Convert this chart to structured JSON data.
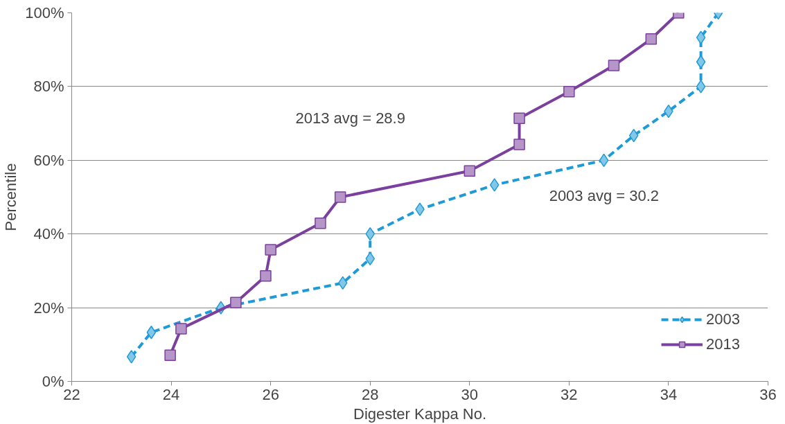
{
  "chart_data": {
    "type": "line",
    "xlabel": "Digester Kappa No.",
    "ylabel": "Percentile",
    "xlim": [
      22,
      36
    ],
    "xticks": [
      22,
      24,
      26,
      28,
      30,
      32,
      34,
      36
    ],
    "ylim": [
      0,
      100
    ],
    "yticks": [
      {
        "value": 0,
        "label": "0%"
      },
      {
        "value": 20,
        "label": "20%"
      },
      {
        "value": 40,
        "label": "40%"
      },
      {
        "value": 60,
        "label": "60%"
      },
      {
        "value": 80,
        "label": "80%"
      },
      {
        "value": 100,
        "label": "100%"
      }
    ],
    "grid": "y",
    "legend": "bottom right",
    "annotations": [
      "2013 avg = 28.9",
      "2003 avg = 30.2"
    ],
    "series": [
      {
        "name": "2003",
        "color": "#1e9ad6",
        "marker": "diamond",
        "line_style": "dashed",
        "x": [
          23.2,
          23.6,
          25.0,
          27.45,
          28.0,
          28.0,
          29.0,
          30.5,
          32.7,
          33.3,
          34.0,
          34.65,
          34.65,
          34.65,
          35.0
        ],
        "values": [
          6.7,
          13.3,
          20,
          26.7,
          33.3,
          40,
          46.7,
          53.3,
          60,
          66.7,
          73.3,
          80,
          86.7,
          93.3,
          100
        ]
      },
      {
        "name": "2013",
        "color": "#7b3f9e",
        "marker": "square",
        "line_style": "solid",
        "x": [
          23.98,
          24.2,
          25.3,
          25.9,
          26.0,
          27.0,
          27.4,
          30.0,
          31.0,
          31.0,
          32.0,
          32.9,
          33.65,
          34.2
        ],
        "values": [
          7.1,
          14.3,
          21.4,
          28.6,
          35.7,
          42.9,
          50,
          57.1,
          64.3,
          71.4,
          78.6,
          85.7,
          92.9,
          100
        ]
      }
    ]
  }
}
